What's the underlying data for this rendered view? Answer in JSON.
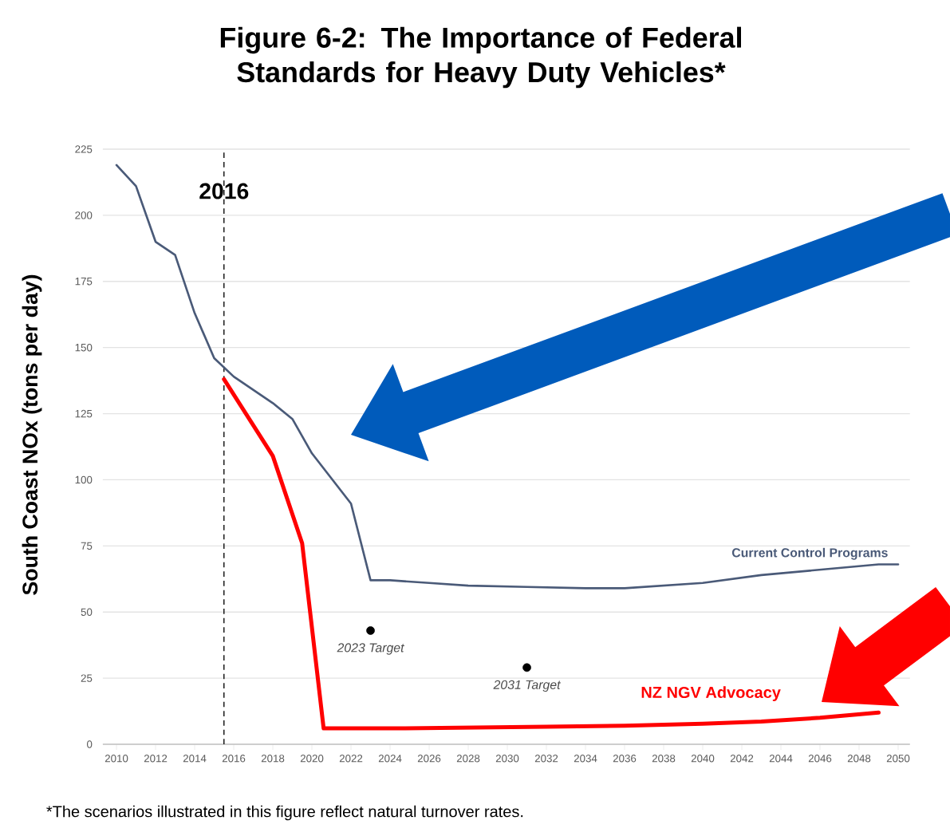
{
  "chart_data": {
    "type": "line",
    "title": "Figure 6-2: The Importance of Federal Standards for Heavy Duty Vehicles*",
    "ylabel": "South Coast NOx (tons per day)",
    "xlim": [
      2009.3,
      2050.6
    ],
    "ylim": [
      0,
      225
    ],
    "xticks": [
      2010,
      2012,
      2014,
      2016,
      2018,
      2020,
      2022,
      2024,
      2026,
      2028,
      2030,
      2032,
      2034,
      2036,
      2038,
      2040,
      2042,
      2044,
      2046,
      2048,
      2050
    ],
    "yticks": [
      0,
      25,
      50,
      75,
      100,
      125,
      150,
      175,
      200,
      225
    ],
    "grid": "y",
    "series": [
      {
        "name": "Current Control Programs",
        "color": "#4a5a78",
        "x": [
          2010,
          2011,
          2012,
          2013,
          2014,
          2015,
          2016,
          2018,
          2019,
          2020,
          2022,
          2023,
          2024,
          2026,
          2028,
          2031,
          2034,
          2036,
          2038,
          2040,
          2043,
          2046,
          2049,
          2050
        ],
        "values": [
          219,
          211,
          190,
          185,
          163,
          146,
          139,
          129,
          123,
          110,
          91,
          62,
          62,
          61,
          60,
          59.5,
          59,
          59,
          60,
          61,
          64,
          66,
          68,
          68
        ]
      },
      {
        "name": "NZ NGV Advocacy",
        "color": "#ff0000",
        "x": [
          2015.5,
          2018,
          2019.5,
          2020.6,
          2024,
          2028,
          2032,
          2036,
          2040,
          2043,
          2046,
          2049
        ],
        "values": [
          138,
          109,
          76,
          6,
          6,
          6.3,
          6.6,
          7,
          7.8,
          8.6,
          10,
          12
        ]
      },
      {
        "type": "scatter",
        "marker": "circle",
        "color": "#000000",
        "x": [
          2023,
          2031
        ],
        "values": [
          43,
          29
        ]
      }
    ],
    "ref_lines": [
      {
        "axis": "x",
        "value": 2015.5,
        "label": "2016",
        "color": "#000000",
        "line_style": "dashed"
      }
    ],
    "annotations": [
      {
        "text": "2023 Target",
        "x": 2023,
        "y": 43
      },
      {
        "text": "2031 Target",
        "x": 2031,
        "y": 29
      },
      "*The scenarios illustrated in this figure reflect natural turnover rates."
    ]
  }
}
